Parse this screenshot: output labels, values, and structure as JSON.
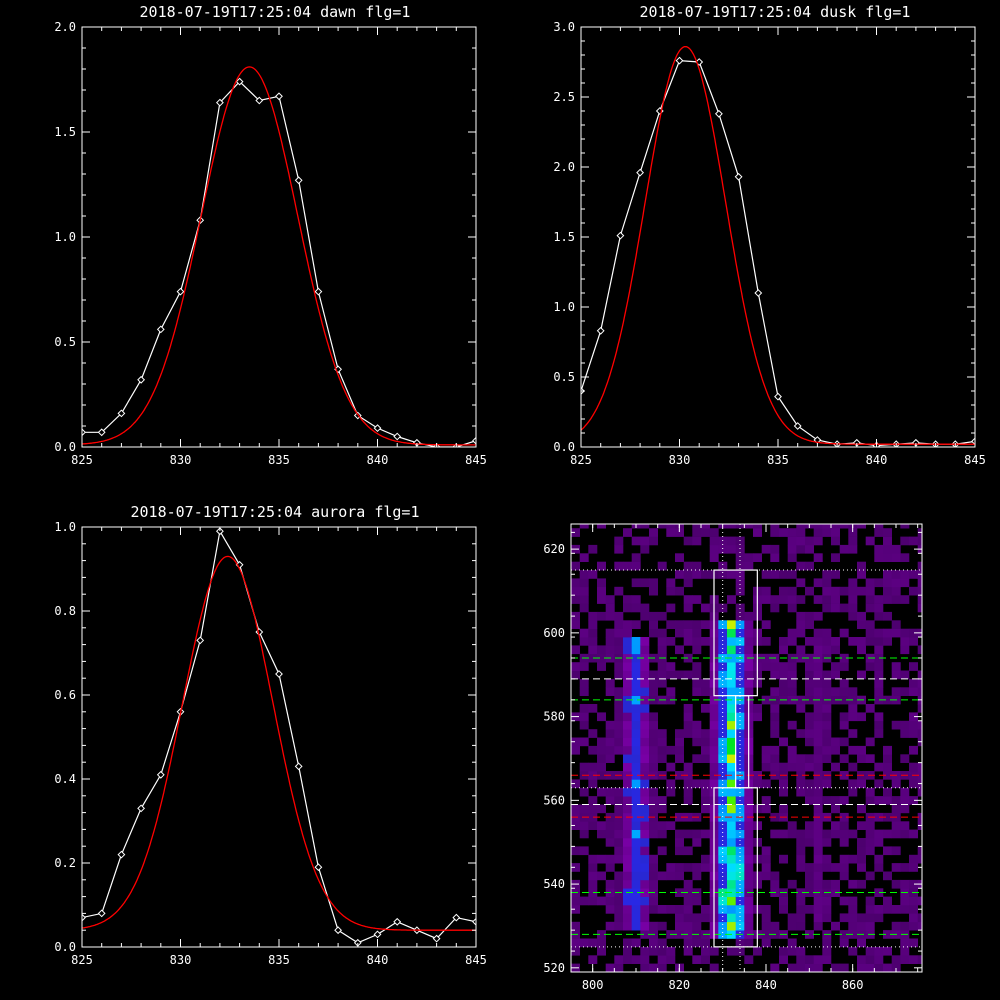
{
  "chart_data": [
    {
      "type": "line",
      "title": "2018-07-19T17:25:04 dawn flg=1",
      "xlim": [
        825,
        845
      ],
      "ylim": [
        0,
        2.0
      ],
      "xticks": [
        825,
        830,
        835,
        840,
        845
      ],
      "yticks": [
        0.0,
        0.5,
        1.0,
        1.5,
        2.0
      ],
      "ytick_decimals": 1,
      "series": [
        {
          "style": "data",
          "color": "#ffffff",
          "x": [
            825,
            826,
            827,
            828,
            829,
            830,
            831,
            832,
            833,
            834,
            835,
            836,
            837,
            838,
            839,
            840,
            841,
            842,
            843,
            844,
            845
          ],
          "y": [
            0.07,
            0.07,
            0.16,
            0.32,
            0.56,
            0.74,
            1.08,
            1.64,
            1.74,
            1.65,
            1.67,
            1.27,
            0.74,
            0.37,
            0.15,
            0.09,
            0.05,
            0.02,
            0.0,
            0.0,
            0.03
          ]
        },
        {
          "style": "fit",
          "color": "#ff0000",
          "gauss": {
            "a": 1.8,
            "mu": 833.5,
            "sigma": 2.45,
            "c": 0.01
          }
        }
      ]
    },
    {
      "type": "line",
      "title": "2018-07-19T17:25:04 dusk flg=1",
      "xlim": [
        825,
        845
      ],
      "ylim": [
        0,
        3.0
      ],
      "xticks": [
        825,
        830,
        835,
        840,
        845
      ],
      "yticks": [
        0.0,
        0.5,
        1.0,
        1.5,
        2.0,
        2.5,
        3.0
      ],
      "ytick_decimals": 1,
      "series": [
        {
          "style": "data",
          "color": "#ffffff",
          "x": [
            825,
            826,
            827,
            828,
            829,
            830,
            831,
            832,
            833,
            834,
            835,
            836,
            837,
            838,
            839,
            840,
            841,
            842,
            843,
            844,
            845
          ],
          "y": [
            0.4,
            0.83,
            1.51,
            1.96,
            2.4,
            2.76,
            2.75,
            2.38,
            1.93,
            1.1,
            0.36,
            0.15,
            0.05,
            0.02,
            0.03,
            0.01,
            0.02,
            0.03,
            0.02,
            0.02,
            0.04
          ]
        },
        {
          "style": "fit",
          "color": "#ff0000",
          "gauss": {
            "a": 2.84,
            "mu": 830.3,
            "sigma": 2.05,
            "c": 0.02
          }
        }
      ]
    },
    {
      "type": "line",
      "title": "2018-07-19T17:25:04 aurora flg=1",
      "xlim": [
        825,
        845
      ],
      "ylim": [
        0,
        1.0
      ],
      "xticks": [
        825,
        830,
        835,
        840,
        845
      ],
      "yticks": [
        0.0,
        0.2,
        0.4,
        0.6,
        0.8,
        1.0
      ],
      "ytick_decimals": 1,
      "series": [
        {
          "style": "data",
          "color": "#ffffff",
          "x": [
            825,
            826,
            827,
            828,
            829,
            830,
            831,
            832,
            833,
            834,
            835,
            836,
            837,
            838,
            839,
            840,
            841,
            842,
            843,
            844,
            845
          ],
          "y": [
            0.07,
            0.08,
            0.22,
            0.33,
            0.41,
            0.56,
            0.73,
            0.99,
            0.91,
            0.75,
            0.65,
            0.43,
            0.19,
            0.04,
            0.01,
            0.03,
            0.06,
            0.04,
            0.02,
            0.07,
            0.06
          ]
        },
        {
          "style": "fit",
          "color": "#ff0000",
          "gauss": {
            "a": 0.89,
            "mu": 832.4,
            "sigma": 2.3,
            "c": 0.04
          }
        }
      ]
    },
    {
      "type": "heatmap",
      "title": "",
      "xlim": [
        795,
        876
      ],
      "ylim": [
        519,
        626
      ],
      "xticks": [
        800,
        820,
        840,
        860
      ],
      "yticks": [
        520,
        540,
        560,
        580,
        600,
        620
      ],
      "ytick_decimals": 0,
      "columns": [
        {
          "x": 810,
          "width": 5,
          "y0": 528,
          "y1": 600,
          "intensity": 0.55
        },
        {
          "x": 832,
          "width": 6,
          "y0": 527,
          "y1": 603,
          "intensity": 0.9
        },
        {
          "x": 852,
          "width": 4,
          "y0": 530,
          "y1": 602,
          "intensity": 0.2
        }
      ],
      "hotspots": [
        {
          "x": 831,
          "y": 537,
          "intensity": 1.0
        },
        {
          "x": 833,
          "y": 543,
          "intensity": 0.95
        },
        {
          "x": 831,
          "y": 548,
          "intensity": 0.8
        },
        {
          "x": 809,
          "y": 537,
          "intensity": 0.65
        },
        {
          "x": 811,
          "y": 544,
          "intensity": 0.55
        },
        {
          "x": 832,
          "y": 592,
          "intensity": 0.65
        },
        {
          "x": 810,
          "y": 592,
          "intensity": 0.45
        },
        {
          "x": 833,
          "y": 558,
          "intensity": 0.5
        }
      ],
      "boxes": [
        {
          "x0": 828,
          "x1": 838,
          "y0": 585,
          "y1": 615
        },
        {
          "x0": 828,
          "x1": 838,
          "y0": 525,
          "y1": 563
        },
        {
          "x0": 833,
          "x1": 836,
          "y0": 563,
          "y1": 585
        }
      ],
      "vlines": [
        {
          "x": 830,
          "style": "dotted",
          "color": "#ffffff"
        },
        {
          "x": 834,
          "style": "dotted",
          "color": "#ffffff"
        }
      ],
      "hlines": [
        {
          "y": 615,
          "style": "dotted",
          "color": "#ffffff"
        },
        {
          "y": 594,
          "style": "dashed",
          "color": "#00ff00"
        },
        {
          "y": 589,
          "style": "dashed",
          "color": "#ffffff"
        },
        {
          "y": 584,
          "style": "dashed",
          "color": "#00ff00"
        },
        {
          "y": 566,
          "style": "dashed",
          "color": "#ff0000"
        },
        {
          "y": 563,
          "style": "dotted",
          "color": "#ffffff"
        },
        {
          "y": 559,
          "style": "dashed",
          "color": "#ffffff"
        },
        {
          "y": 556,
          "style": "dashed",
          "color": "#ff0000"
        },
        {
          "y": 538,
          "style": "dashed",
          "color": "#00ff00"
        },
        {
          "y": 528,
          "style": "dashed",
          "color": "#00ff00"
        },
        {
          "y": 525,
          "style": "dotted",
          "color": "#ffffff"
        }
      ]
    }
  ]
}
